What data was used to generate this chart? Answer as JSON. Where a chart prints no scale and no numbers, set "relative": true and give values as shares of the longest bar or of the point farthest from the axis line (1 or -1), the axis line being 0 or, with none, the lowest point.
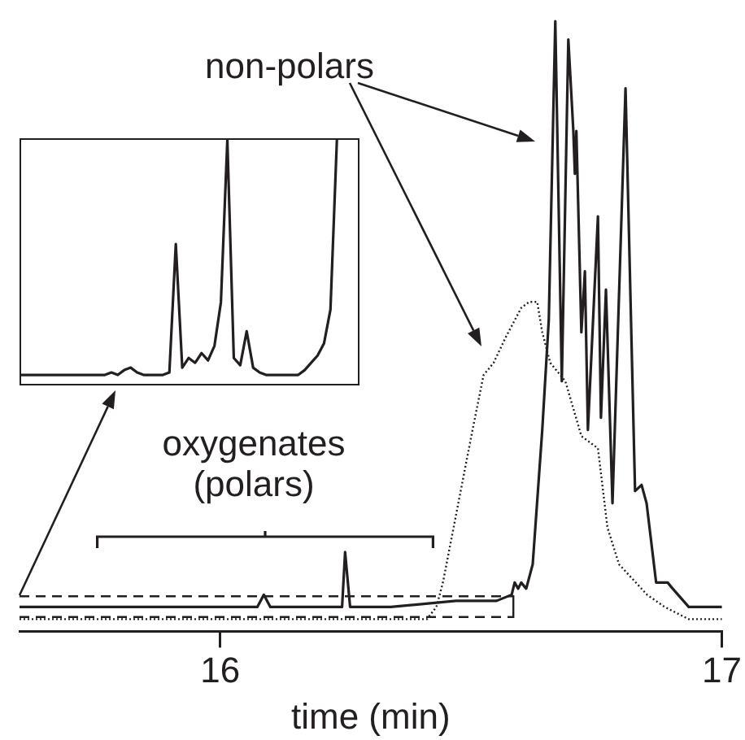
{
  "chart_data": [
    {
      "type": "line",
      "xlabel": "time (min)",
      "xlim": [
        15.6,
        17
      ],
      "xticks": [
        16,
        17
      ],
      "relative": true,
      "marker": "none",
      "annotations": [
        "non-polars",
        "oxygenates (polars)"
      ],
      "series": [
        {
          "color": "#231f20",
          "line_style": "solid",
          "x": [
            15.6,
            15.886,
            16.074,
            16.087,
            16.1,
            16.227,
            16.243,
            16.249,
            16.259,
            16.34,
            16.47,
            16.551,
            16.581,
            16.587,
            16.594,
            16.6,
            16.61,
            16.623,
            16.642,
            16.655,
            16.668,
            16.681,
            16.694,
            16.704,
            16.707,
            16.71,
            16.72,
            16.727,
            16.733,
            16.753,
            16.759,
            16.769,
            16.782,
            16.808,
            16.827,
            16.84,
            16.85,
            16.869,
            16.892,
            16.902,
            16.934,
            17.0
          ],
          "values": [
            0.04,
            0.04,
            0.04,
            0.06,
            0.04,
            0.04,
            0.04,
            0.13,
            0.04,
            0.04,
            0.05,
            0.05,
            0.06,
            0.08,
            0.07,
            0.08,
            0.07,
            0.11,
            0.33,
            0.51,
            1,
            0.41,
            0.97,
            0.82,
            0.75,
            0.82,
            0.49,
            0.59,
            0.33,
            0.68,
            0.35,
            0.56,
            0.21,
            0.89,
            0.23,
            0.24,
            0.21,
            0.08,
            0.08,
            0.07,
            0.04,
            0.04
          ]
        },
        {
          "color": "#231f20",
          "line_style": "dotted",
          "x": [
            15.6,
            15.821,
            16.145,
            16.412,
            16.431,
            16.444,
            16.47,
            16.503,
            16.525,
            16.545,
            16.568,
            16.6,
            16.616,
            16.632,
            16.642,
            16.658,
            16.688,
            16.72,
            16.753,
            16.772,
            16.795,
            16.851,
            16.886,
            16.934,
            17.0
          ],
          "values": [
            0.02,
            0.02,
            0.02,
            0.02,
            0.04,
            0.08,
            0.19,
            0.33,
            0.42,
            0.44,
            0.48,
            0.53,
            0.54,
            0.54,
            0.49,
            0.44,
            0.41,
            0.32,
            0.3,
            0.17,
            0.11,
            0.06,
            0.04,
            0.02,
            0.02
          ]
        }
      ]
    },
    {
      "type": "line",
      "relative": true,
      "tick_labels": false,
      "marker": "none",
      "categories": [
        null,
        null,
        null,
        null,
        null,
        null,
        null,
        null,
        null,
        null,
        null,
        null,
        null,
        null,
        null,
        null,
        null,
        null,
        null,
        null,
        null,
        null,
        null,
        null,
        null,
        null,
        null,
        null,
        null,
        null,
        null,
        null,
        null,
        null,
        null,
        null,
        null,
        null,
        null,
        null,
        null,
        null,
        null,
        null,
        null,
        null,
        null,
        null,
        null,
        null,
        null,
        null,
        null
      ],
      "series": [
        {
          "color": "#231f20",
          "line_style": "solid",
          "values": [
            0.03,
            0.03,
            0.03,
            0.03,
            0.03,
            0.03,
            0.03,
            0.03,
            0.03,
            0.03,
            0.03,
            0.03,
            0.03,
            0.03,
            0.04,
            0.03,
            0.05,
            0.06,
            0.04,
            0.03,
            0.03,
            0.03,
            0.03,
            0.04,
            0.57,
            0.06,
            0.1,
            0.08,
            0.12,
            0.09,
            0.15,
            0.33,
            1,
            0.1,
            0.07,
            0.21,
            0.06,
            0.04,
            0.03,
            0.03,
            0.03,
            0.03,
            0.03,
            0.03,
            0.05,
            0.08,
            0.11,
            0.16,
            0.3,
            1,
            null,
            null,
            null
          ]
        }
      ]
    }
  ]
}
